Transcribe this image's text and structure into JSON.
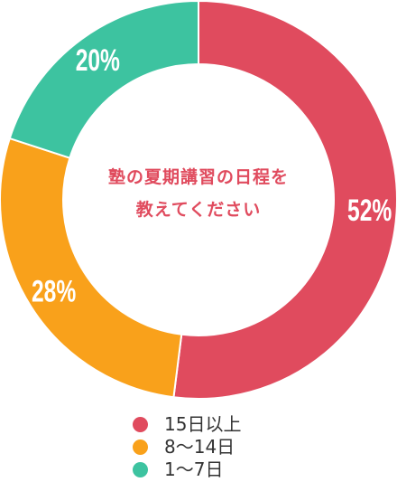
{
  "chart_data": {
    "type": "pie",
    "donut": true,
    "center_label_lines": [
      "塾の夏期講習の日程を",
      "教えてください"
    ],
    "categories": [
      "15日以上",
      "8〜14日",
      "1〜7日"
    ],
    "values": [
      52,
      28,
      20
    ],
    "value_labels": [
      "52%",
      "28%",
      "20%"
    ],
    "colors": [
      "#E04B5E",
      "#F9A11B",
      "#3DC3A0"
    ],
    "legend_placement": "bottom"
  }
}
